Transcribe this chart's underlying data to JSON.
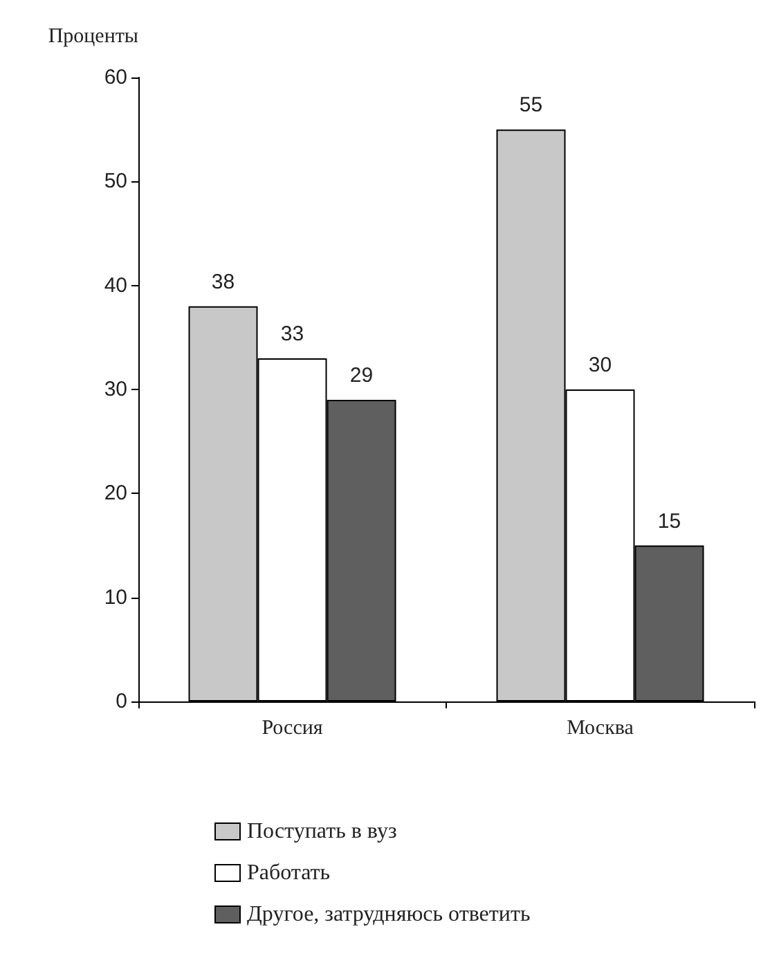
{
  "chart_data": {
    "type": "bar",
    "ylabel": "Проценты",
    "categories": [
      "Россия",
      "Москва"
    ],
    "series": [
      {
        "name": "Поступать в вуз",
        "color": "#c8c8c8",
        "values": [
          38,
          55
        ]
      },
      {
        "name": "Работать",
        "color": "#ffffff",
        "values": [
          33,
          30
        ]
      },
      {
        "name": "Другое, затрудняюсь ответить",
        "color": "#5f5f5f",
        "values": [
          29,
          15
        ]
      }
    ],
    "ylim": [
      0,
      60
    ],
    "yticks": [
      0,
      10,
      20,
      30,
      40,
      50,
      60
    ],
    "grid": false,
    "legend": "bottom",
    "data_labels": true
  }
}
